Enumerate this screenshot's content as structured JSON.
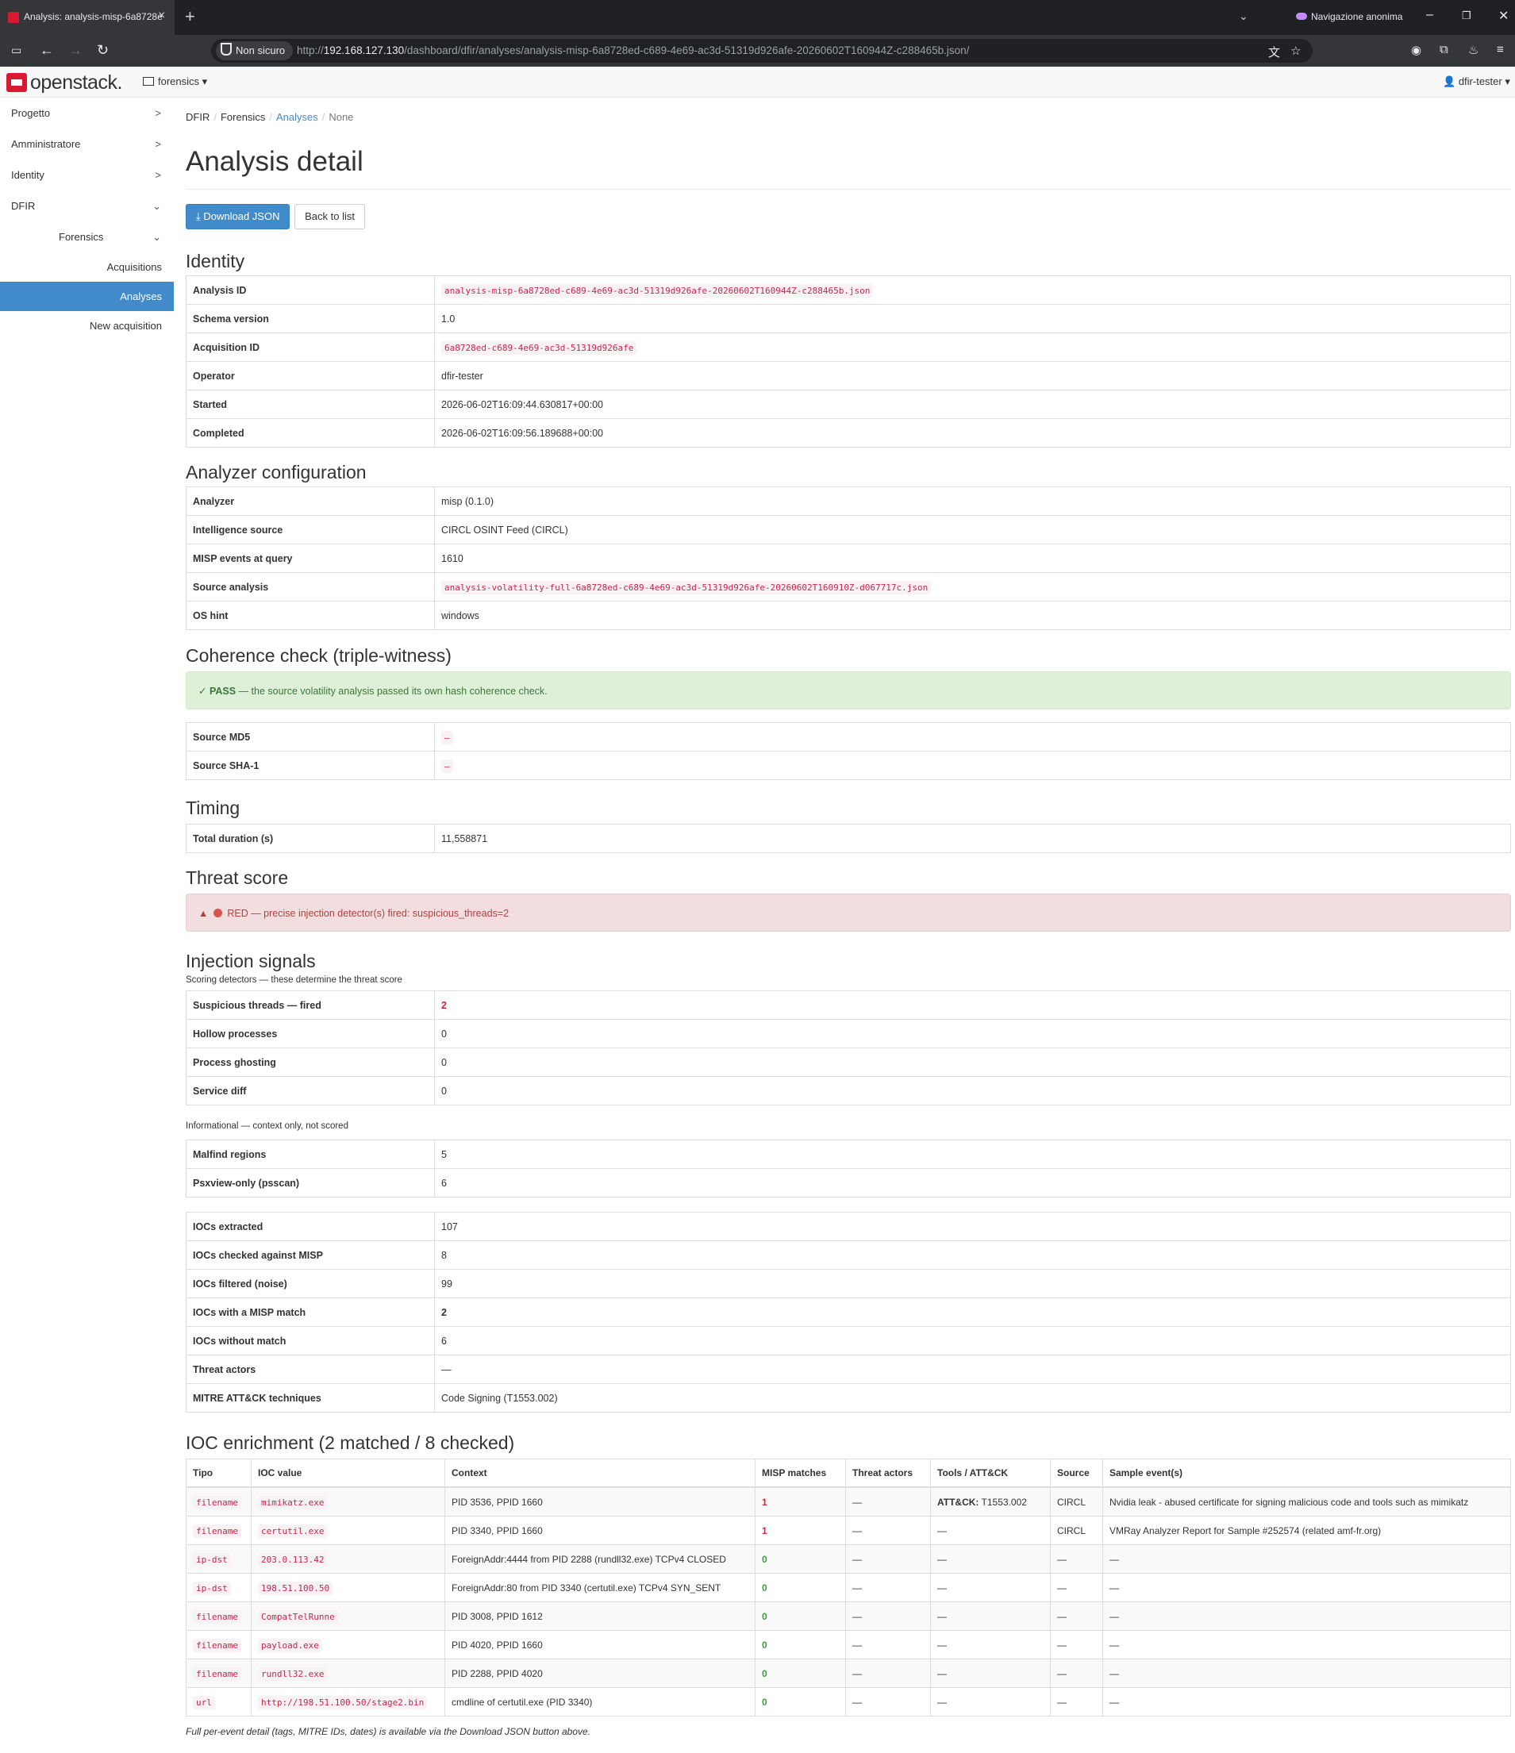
{
  "browser": {
    "tab_title": "Analysis: analysis-misp-6a8728e",
    "incognito_label": "Navigazione anonima",
    "security_chip": "Non sicuro",
    "url_prefix": "http://",
    "url_host": "192.168.127.130",
    "url_path": "/dashboard/dfir/analyses/analysis-misp-6a8728ed-c689-4e69-ac3d-51319d926afe-20260602T160944Z-c288465b.json/"
  },
  "header": {
    "logo_text": "openstack.",
    "project": "forensics",
    "user": "dfir-tester"
  },
  "sidebar": {
    "items": [
      {
        "label": "Progetto"
      },
      {
        "label": "Amministratore"
      },
      {
        "label": "Identity"
      },
      {
        "label": "DFIR"
      },
      {
        "label": "Forensics"
      },
      {
        "label": "Acquisitions"
      },
      {
        "label": "Analyses"
      },
      {
        "label": "New acquisition"
      }
    ]
  },
  "breadcrumb": [
    "DFIR",
    "Forensics",
    "Analyses",
    "None"
  ],
  "page_title": "Analysis detail",
  "buttons": {
    "download": "Download JSON",
    "back": "Back to list"
  },
  "identity": {
    "heading": "Identity",
    "rows": [
      {
        "k": "Analysis ID",
        "v": "analysis-misp-6a8728ed-c689-4e69-ac3d-51319d926afe-20260602T160944Z-c288465b.json"
      },
      {
        "k": "Schema version",
        "v": "1.0"
      },
      {
        "k": "Acquisition ID",
        "v": "6a8728ed-c689-4e69-ac3d-51319d926afe"
      },
      {
        "k": "Operator",
        "v": "dfir-tester"
      },
      {
        "k": "Started",
        "v": "2026-06-02T16:09:44.630817+00:00"
      },
      {
        "k": "Completed",
        "v": "2026-06-02T16:09:56.189688+00:00"
      }
    ]
  },
  "analyzer": {
    "heading": "Analyzer configuration",
    "rows": [
      {
        "k": "Analyzer",
        "v": "misp (0.1.0)"
      },
      {
        "k": "Intelligence source",
        "v": "CIRCL OSINT Feed (CIRCL)"
      },
      {
        "k": "MISP events at query",
        "v": "1610"
      },
      {
        "k": "Source analysis",
        "v": "analysis-volatility-full-6a8728ed-c689-4e69-ac3d-51319d926afe-20260602T160910Z-d067717c.json"
      },
      {
        "k": "OS hint",
        "v": "windows"
      }
    ]
  },
  "coherence": {
    "heading": "Coherence check (triple-witness)",
    "status": "PASS",
    "message": " — the source volatility analysis passed its own hash coherence check.",
    "rows": [
      {
        "k": "Source MD5",
        "v": "–"
      },
      {
        "k": "Source SHA-1",
        "v": "–"
      }
    ]
  },
  "timing": {
    "heading": "Timing",
    "rows": [
      {
        "k": "Total duration (s)",
        "v": "11,558871"
      }
    ]
  },
  "threat": {
    "heading": "Threat score",
    "message": "RED — precise injection detector(s) fired: suspicious_threads=2"
  },
  "injection": {
    "heading": "Injection signals",
    "scoring_caption": "Scoring detectors — these determine the threat score",
    "scoring_rows": [
      {
        "k": "Suspicious threads — fired",
        "v": "2"
      },
      {
        "k": "Hollow processes",
        "v": "0"
      },
      {
        "k": "Process ghosting",
        "v": "0"
      },
      {
        "k": "Service diff",
        "v": "0"
      }
    ],
    "info_caption": "Informational — context only, not scored",
    "info_rows": [
      {
        "k": "Malfind regions",
        "v": "5"
      },
      {
        "k": "Psxview-only (psscan)",
        "v": "6"
      }
    ],
    "summary_rows": [
      {
        "k": "IOCs extracted",
        "v": "107"
      },
      {
        "k": "IOCs checked against MISP",
        "v": "8"
      },
      {
        "k": "IOCs filtered (noise)",
        "v": "99"
      },
      {
        "k": "IOCs with a MISP match",
        "v": "2"
      },
      {
        "k": "IOCs without match",
        "v": "6"
      },
      {
        "k": "Threat actors",
        "v": "—"
      },
      {
        "k": "MITRE ATT&CK techniques",
        "v": "Code Signing (T1553.002)"
      }
    ]
  },
  "ioc": {
    "heading": "IOC enrichment (2 matched / 8 checked)",
    "headers": [
      "Tipo",
      "IOC value",
      "Context",
      "MISP matches",
      "Threat actors",
      "Tools / ATT&CK",
      "Source",
      "Sample event(s)"
    ],
    "rows": [
      {
        "tipo": "filename",
        "value": "mimikatz.exe",
        "context": "PID 3536, PPID 1660",
        "matches": "1",
        "actors": "—",
        "tools_prefix": "ATT&CK:",
        "tools": " T1553.002",
        "source": "CIRCL",
        "sample": "Nvidia leak - abused certificate for signing malicious code and tools such as mimikatz"
      },
      {
        "tipo": "filename",
        "value": "certutil.exe",
        "context": "PID 3340, PPID 1660",
        "matches": "1",
        "actors": "—",
        "tools_prefix": "",
        "tools": "—",
        "source": "CIRCL",
        "sample": "VMRay Analyzer Report for Sample #252574 (related amf-fr.org)"
      },
      {
        "tipo": "ip-dst",
        "value": "203.0.113.42",
        "context": "ForeignAddr:4444 from PID 2288 (rundll32.exe) TCPv4 CLOSED",
        "matches": "0",
        "actors": "—",
        "tools_prefix": "",
        "tools": "—",
        "source": "—",
        "sample": "—"
      },
      {
        "tipo": "ip-dst",
        "value": "198.51.100.50",
        "context": "ForeignAddr:80 from PID 3340 (certutil.exe) TCPv4 SYN_SENT",
        "matches": "0",
        "actors": "—",
        "tools_prefix": "",
        "tools": "—",
        "source": "—",
        "sample": "—"
      },
      {
        "tipo": "filename",
        "value": "CompatTelRunne",
        "context": "PID 3008, PPID 1612",
        "matches": "0",
        "actors": "—",
        "tools_prefix": "",
        "tools": "—",
        "source": "—",
        "sample": "—"
      },
      {
        "tipo": "filename",
        "value": "payload.exe",
        "context": "PID 4020, PPID 1660",
        "matches": "0",
        "actors": "—",
        "tools_prefix": "",
        "tools": "—",
        "source": "—",
        "sample": "—"
      },
      {
        "tipo": "filename",
        "value": "rundll32.exe",
        "context": "PID 2288, PPID 4020",
        "matches": "0",
        "actors": "—",
        "tools_prefix": "",
        "tools": "—",
        "source": "—",
        "sample": "—"
      },
      {
        "tipo": "url",
        "value": "http://198.51.100.50/stage2.bin",
        "context": "cmdline of certutil.exe (PID 3340)",
        "matches": "0",
        "actors": "—",
        "tools_prefix": "",
        "tools": "—",
        "source": "—",
        "sample": "—"
      }
    ]
  },
  "footnote": "Full per-event detail (tags, MITRE IDs, dates) is available via the Download JSON button above."
}
